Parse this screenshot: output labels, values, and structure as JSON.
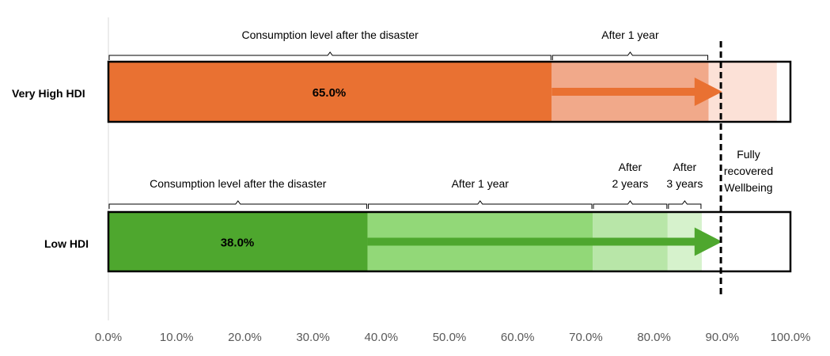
{
  "colors": {
    "very_high": [
      "#E97132",
      "#F1A98A",
      "#FCE1D7"
    ],
    "low": [
      "#4EA72E",
      "#92D878",
      "#B8E6A8",
      "#D6F2CC"
    ],
    "arrow_orange": "#E97132",
    "arrow_green": "#4EA72E",
    "axis": "#D9D9D9"
  },
  "chart_data": {
    "type": "bar",
    "orientation": "horizontal",
    "stacked": true,
    "xlim": [
      0,
      100
    ],
    "x_ticks": [
      "0.0%",
      "10.0%",
      "20.0%",
      "30.0%",
      "40.0%",
      "50.0%",
      "60.0%",
      "70.0%",
      "80.0%",
      "90.0%",
      "100.0%"
    ],
    "categories": [
      "Very High HDI",
      "Low HDI"
    ],
    "bars": [
      {
        "category": "Very High HDI",
        "value_label": "65.0%",
        "segments": [
          {
            "start": 0,
            "end": 65
          },
          {
            "start": 65,
            "end": 88
          },
          {
            "start": 88,
            "end": 98
          }
        ],
        "arrow": {
          "from": 65,
          "to": 90
        }
      },
      {
        "category": "Low HDI",
        "value_label": "38.0%",
        "segments": [
          {
            "start": 0,
            "end": 38
          },
          {
            "start": 38,
            "end": 71
          },
          {
            "start": 71,
            "end": 82
          },
          {
            "start": 82,
            "end": 87
          }
        ],
        "arrow": {
          "from": 38,
          "to": 90
        }
      }
    ],
    "reference_line": {
      "x": 89.8
    },
    "annotations": {
      "very_high": [
        {
          "lines": [
            "Consumption level after the disaster"
          ],
          "start": 0,
          "end": 65
        },
        {
          "lines": [
            "After 1 year"
          ],
          "start": 65,
          "end": 88
        }
      ],
      "low": [
        {
          "lines": [
            "Consumption level after the disaster"
          ],
          "start": 0,
          "end": 38
        },
        {
          "lines": [
            "After 1 year"
          ],
          "start": 38,
          "end": 71
        },
        {
          "lines": [
            "After",
            "2 years"
          ],
          "start": 71,
          "end": 82
        },
        {
          "lines": [
            "After",
            "3 years"
          ],
          "start": 82,
          "end": 87
        }
      ],
      "recovered": [
        "Fully",
        "recovered",
        "Wellbeing"
      ]
    }
  }
}
